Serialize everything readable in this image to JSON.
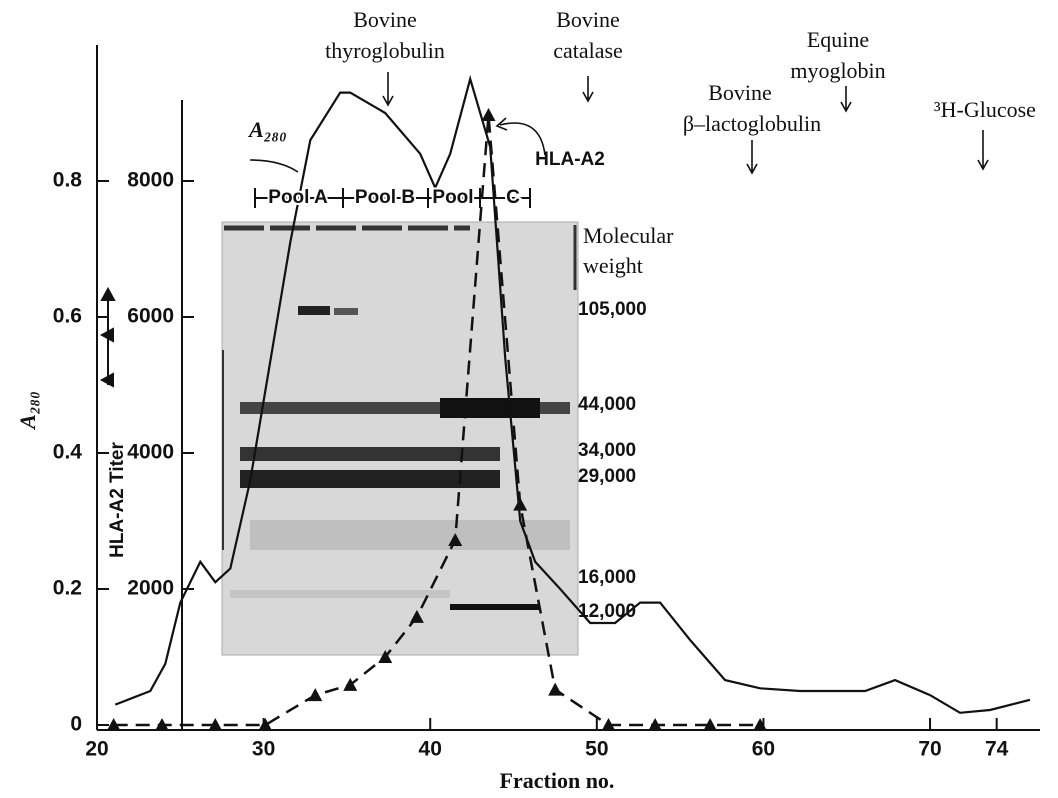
{
  "chart_data": {
    "type": "line",
    "xlabel": "Fraction no.",
    "ylabel": "A₂₈₀",
    "y2label": "HLA-A2 Titer",
    "xlim": [
      20,
      76
    ],
    "xticks": [
      20,
      30,
      40,
      50,
      60,
      70,
      74
    ],
    "ylim": [
      0,
      1.0
    ],
    "yticks": [
      0,
      0.2,
      0.4,
      0.6,
      0.8
    ],
    "y2lim": [
      0,
      10000
    ],
    "y2ticks": [
      2000,
      4000,
      6000,
      8000
    ],
    "series": [
      {
        "name": "A₂₈₀",
        "color": "#111111",
        "style": "solid",
        "x": [
          21.1,
          23.2,
          24.1,
          25.0,
          26.2,
          27.1,
          28.0,
          29.2,
          31.6,
          32.8,
          34.6,
          35.2,
          37.3,
          39.4,
          40.3,
          41.2,
          42.4,
          43.6,
          44.5,
          45.4,
          46.3,
          47.8,
          49.6,
          51.1,
          52.6,
          53.8,
          55.6,
          57.7,
          59.8,
          62.2,
          66.1,
          67.9,
          70.0,
          71.8,
          73.6,
          76.0
        ],
        "values": [
          0.03,
          0.05,
          0.09,
          0.18,
          0.24,
          0.21,
          0.23,
          0.36,
          0.71,
          0.86,
          0.93,
          0.93,
          0.9,
          0.84,
          0.79,
          0.84,
          0.95,
          0.85,
          0.54,
          0.3,
          0.24,
          0.2,
          0.15,
          0.15,
          0.18,
          0.18,
          0.125,
          0.066,
          0.054,
          0.05,
          0.05,
          0.066,
          0.044,
          0.018,
          0.022,
          0.037
        ]
      },
      {
        "name": "HLA-A2",
        "color": "#111111",
        "style": "dashed",
        "axis": "y2",
        "marker": "triangle",
        "x": [
          21.0,
          23.9,
          27.1,
          30.1,
          33.1,
          35.2,
          37.3,
          39.2,
          41.5,
          43.5,
          45.4,
          47.5,
          50.7,
          53.5,
          56.8,
          59.8
        ],
        "values": [
          0,
          0,
          0,
          0,
          440,
          590,
          1000,
          1590,
          2720,
          8970,
          3240,
          520,
          0,
          0,
          0,
          0
        ]
      }
    ],
    "annotations": [
      {
        "lines": [
          "Bovine",
          "thyroglobulin"
        ]
      },
      {
        "lines": [
          "Bovine",
          "catalase"
        ]
      },
      {
        "lines": [
          "Equine",
          "myoglobin"
        ]
      },
      {
        "lines": [
          "Bovine",
          "β–lactoglobulin"
        ]
      },
      {
        "lines": [
          "³H-Glucose"
        ]
      }
    ],
    "gel": {
      "pools": [
        "Pool A",
        "Pool B",
        "Pool",
        "C"
      ],
      "mw_title": [
        "Molecular",
        "weight"
      ],
      "mw_labels": [
        "105,000",
        "44,000",
        "34,000",
        "29,000",
        "16,000",
        "12,000"
      ]
    }
  }
}
